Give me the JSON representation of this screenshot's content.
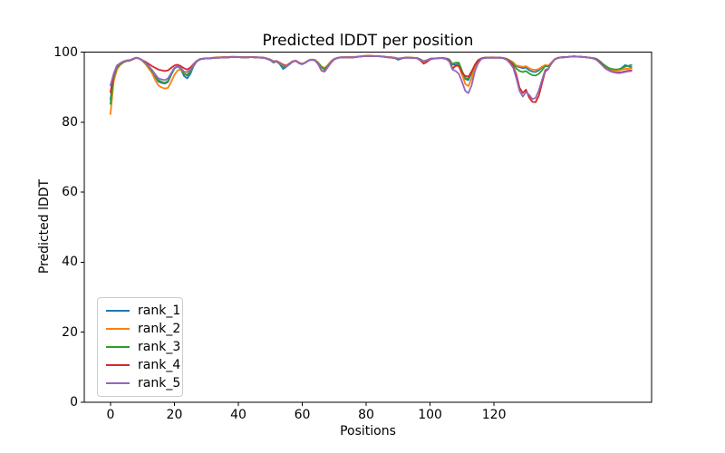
{
  "chart_data": {
    "type": "line",
    "title": "Predicted lDDT per position",
    "xlabel": "Positions",
    "ylabel": "Predicted lDDT",
    "x_start": 0,
    "x_step": 1,
    "n_points": 164,
    "xlim": [
      -8.2,
      169.3
    ],
    "ylim": [
      0,
      100
    ],
    "xticks": [
      0,
      20,
      40,
      60,
      80,
      100,
      120
    ],
    "yticks": [
      0,
      20,
      40,
      60,
      80,
      100
    ],
    "grid": false,
    "legend_position": "lower left",
    "legend_border_color": "#cccccc",
    "axis_color": "#000000",
    "series": [
      {
        "name": "rank_1",
        "color": "#1f77b4",
        "values": [
          86.5,
          93.0,
          95.8,
          96.6,
          97.2,
          97.5,
          97.6,
          98.0,
          98.4,
          98.2,
          97.6,
          96.8,
          95.7,
          94.4,
          92.9,
          91.6,
          91.2,
          91.0,
          91.5,
          93.5,
          95.3,
          95.9,
          95.2,
          93.2,
          92.5,
          93.8,
          96.0,
          97.3,
          97.9,
          98.1,
          98.2,
          98.2,
          98.3,
          98.4,
          98.4,
          98.5,
          98.5,
          98.5,
          98.6,
          98.6,
          98.6,
          98.5,
          98.5,
          98.5,
          98.6,
          98.5,
          98.5,
          98.4,
          98.4,
          98.0,
          97.7,
          97.0,
          97.3,
          96.5,
          95.2,
          95.8,
          96.5,
          97.2,
          97.5,
          96.8,
          96.5,
          97.0,
          97.6,
          97.8,
          97.7,
          96.8,
          95.6,
          95.0,
          96.0,
          97.2,
          98.0,
          98.3,
          98.5,
          98.5,
          98.5,
          98.5,
          98.5,
          98.6,
          98.7,
          98.8,
          98.9,
          98.9,
          98.9,
          98.8,
          98.8,
          98.7,
          98.6,
          98.5,
          98.5,
          98.3,
          97.8,
          98.2,
          98.4,
          98.4,
          98.4,
          98.3,
          98.3,
          97.8,
          97.3,
          97.6,
          98.1,
          98.2,
          98.2,
          98.3,
          98.3,
          98.2,
          97.8,
          96.4,
          96.4,
          96.6,
          94.3,
          92.3,
          92.0,
          94.0,
          96.3,
          97.6,
          98.2,
          98.4,
          98.4,
          98.4,
          98.4,
          98.4,
          98.4,
          98.3,
          98.0,
          97.5,
          97.0,
          96.0,
          95.7,
          95.4,
          95.6,
          94.8,
          94.4,
          94.3,
          94.8,
          95.6,
          96.2,
          96.0,
          97.0,
          98.0,
          98.4,
          98.5,
          98.6,
          98.6,
          98.7,
          98.8,
          98.7,
          98.7,
          98.6,
          98.5,
          98.4,
          98.3,
          98.0,
          97.4,
          96.6,
          95.9,
          95.3,
          95.0,
          94.9,
          95.0,
          95.5,
          96.3,
          96.0,
          95.7
        ]
      },
      {
        "name": "rank_2",
        "color": "#ff7f0e",
        "values": [
          82.3,
          91.5,
          95.0,
          96.3,
          97.0,
          97.4,
          97.5,
          97.9,
          98.3,
          98.1,
          97.5,
          96.5,
          95.3,
          94.0,
          92.0,
          90.5,
          89.9,
          89.6,
          89.8,
          91.5,
          93.5,
          94.8,
          95.0,
          94.0,
          93.6,
          94.4,
          96.2,
          97.4,
          98.0,
          98.2,
          98.3,
          98.3,
          98.4,
          98.5,
          98.5,
          98.6,
          98.6,
          98.6,
          98.7,
          98.7,
          98.6,
          98.6,
          98.6,
          98.6,
          98.6,
          98.6,
          98.5,
          98.5,
          98.4,
          98.2,
          97.9,
          97.4,
          97.5,
          97.0,
          96.5,
          96.2,
          96.8,
          97.4,
          97.6,
          97.0,
          96.7,
          97.1,
          97.7,
          97.9,
          97.8,
          97.0,
          95.9,
          95.5,
          96.3,
          97.4,
          98.1,
          98.4,
          98.5,
          98.5,
          98.6,
          98.6,
          98.6,
          98.7,
          98.8,
          98.9,
          99.0,
          99.0,
          98.9,
          98.9,
          98.8,
          98.8,
          98.7,
          98.6,
          98.5,
          98.4,
          98.2,
          98.3,
          98.4,
          98.5,
          98.4,
          98.4,
          98.3,
          97.9,
          97.4,
          97.7,
          98.1,
          98.2,
          98.3,
          98.3,
          98.3,
          98.2,
          97.7,
          95.4,
          96.0,
          96.2,
          93.5,
          90.9,
          90.3,
          92.5,
          95.8,
          97.4,
          98.1,
          98.4,
          98.4,
          98.5,
          98.5,
          98.4,
          98.4,
          98.3,
          98.1,
          97.6,
          97.1,
          96.2,
          96.0,
          95.8,
          96.0,
          95.4,
          95.0,
          94.9,
          95.2,
          95.8,
          96.3,
          96.1,
          97.1,
          98.0,
          98.4,
          98.5,
          98.6,
          98.6,
          98.7,
          98.8,
          98.7,
          98.7,
          98.6,
          98.5,
          98.4,
          98.3,
          98.0,
          97.4,
          96.6,
          95.9,
          95.2,
          94.9,
          94.7,
          94.8,
          95.0,
          95.2,
          95.3,
          95.4
        ]
      },
      {
        "name": "rank_3",
        "color": "#2ca02c",
        "values": [
          85.2,
          92.8,
          95.6,
          96.5,
          97.1,
          97.5,
          97.6,
          98.0,
          98.4,
          98.2,
          97.6,
          96.8,
          95.8,
          94.6,
          93.2,
          92.0,
          91.5,
          91.2,
          91.8,
          93.6,
          95.4,
          96.0,
          95.3,
          93.8,
          93.3,
          94.5,
          96.3,
          97.4,
          97.9,
          98.1,
          98.2,
          98.2,
          98.3,
          98.4,
          98.4,
          98.5,
          98.5,
          98.5,
          98.6,
          98.6,
          98.6,
          98.5,
          98.5,
          98.5,
          98.6,
          98.5,
          98.5,
          98.4,
          98.4,
          98.1,
          97.8,
          97.1,
          97.3,
          96.7,
          95.6,
          95.9,
          96.6,
          97.3,
          97.5,
          96.9,
          96.6,
          97.0,
          97.6,
          97.8,
          97.7,
          96.9,
          95.7,
          95.1,
          96.1,
          97.2,
          98.0,
          98.3,
          98.5,
          98.5,
          98.5,
          98.5,
          98.5,
          98.6,
          98.7,
          98.8,
          98.9,
          98.9,
          98.9,
          98.8,
          98.8,
          98.7,
          98.6,
          98.5,
          98.5,
          98.3,
          97.9,
          98.2,
          98.4,
          98.4,
          98.4,
          98.3,
          98.3,
          97.9,
          97.4,
          97.7,
          98.1,
          98.2,
          98.2,
          98.3,
          98.3,
          98.2,
          97.9,
          96.6,
          97.0,
          97.0,
          94.6,
          92.6,
          92.4,
          94.2,
          96.4,
          97.7,
          98.2,
          98.4,
          98.4,
          98.4,
          98.4,
          98.4,
          98.4,
          98.3,
          98.0,
          97.4,
          96.6,
          95.3,
          94.6,
          94.3,
          94.6,
          93.9,
          93.4,
          93.3,
          93.8,
          94.8,
          96.0,
          95.9,
          96.9,
          97.9,
          98.3,
          98.5,
          98.6,
          98.6,
          98.7,
          98.8,
          98.7,
          98.7,
          98.6,
          98.5,
          98.4,
          98.3,
          98.1,
          97.5,
          96.7,
          96.0,
          95.4,
          95.2,
          95.0,
          95.1,
          95.4,
          95.8,
          96.1,
          96.3
        ]
      },
      {
        "name": "rank_4",
        "color": "#d62728",
        "values": [
          88.5,
          93.5,
          96.0,
          96.8,
          97.3,
          97.6,
          97.7,
          98.0,
          98.4,
          98.2,
          97.7,
          97.2,
          96.6,
          96.0,
          95.5,
          95.0,
          94.8,
          94.6,
          94.8,
          95.5,
          96.2,
          96.4,
          96.0,
          95.4,
          95.0,
          95.6,
          96.6,
          97.5,
          98.0,
          98.1,
          98.2,
          98.2,
          98.3,
          98.4,
          98.4,
          98.5,
          98.5,
          98.5,
          98.6,
          98.6,
          98.6,
          98.5,
          98.5,
          98.5,
          98.6,
          98.5,
          98.5,
          98.4,
          98.4,
          98.1,
          97.8,
          97.3,
          97.4,
          96.9,
          96.3,
          96.1,
          96.7,
          97.3,
          97.5,
          96.9,
          96.6,
          97.0,
          97.6,
          97.8,
          97.6,
          96.5,
          94.7,
          94.4,
          95.7,
          97.0,
          97.9,
          98.3,
          98.5,
          98.5,
          98.5,
          98.5,
          98.5,
          98.6,
          98.7,
          98.8,
          98.9,
          98.9,
          98.9,
          98.8,
          98.8,
          98.7,
          98.6,
          98.5,
          98.4,
          98.3,
          98.1,
          98.2,
          98.4,
          98.4,
          98.4,
          98.3,
          98.2,
          97.6,
          96.7,
          97.2,
          97.9,
          98.1,
          98.2,
          98.3,
          98.3,
          98.1,
          97.6,
          95.2,
          96.2,
          96.0,
          94.0,
          93.2,
          93.0,
          94.5,
          96.3,
          97.6,
          98.2,
          98.4,
          98.4,
          98.4,
          98.4,
          98.4,
          98.4,
          98.3,
          97.9,
          97.2,
          96.0,
          93.5,
          89.8,
          88.3,
          89.3,
          87.0,
          85.8,
          85.7,
          87.5,
          91.0,
          94.5,
          95.2,
          96.8,
          97.9,
          98.3,
          98.5,
          98.5,
          98.6,
          98.7,
          98.7,
          98.7,
          98.6,
          98.6,
          98.5,
          98.4,
          98.2,
          97.9,
          97.2,
          96.2,
          95.3,
          94.8,
          94.4,
          94.2,
          94.2,
          94.3,
          94.5,
          94.7,
          94.8
        ]
      },
      {
        "name": "rank_5",
        "color": "#9467bd",
        "values": [
          90.5,
          93.8,
          96.2,
          96.8,
          97.3,
          97.6,
          97.7,
          98.1,
          98.4,
          98.2,
          97.7,
          96.9,
          96.0,
          94.9,
          93.6,
          92.5,
          92.2,
          92.0,
          92.5,
          94.0,
          95.5,
          96.0,
          95.5,
          94.4,
          94.3,
          95.0,
          96.4,
          97.5,
          98.0,
          98.1,
          98.2,
          98.2,
          98.3,
          98.4,
          98.4,
          98.5,
          98.5,
          98.5,
          98.6,
          98.6,
          98.6,
          98.5,
          98.5,
          98.5,
          98.6,
          98.5,
          98.5,
          98.4,
          98.4,
          98.1,
          97.8,
          97.2,
          97.4,
          96.8,
          96.2,
          96.0,
          96.6,
          97.3,
          97.5,
          96.9,
          96.6,
          97.0,
          97.6,
          97.8,
          97.6,
          96.6,
          94.8,
          94.5,
          95.8,
          97.1,
          98.0,
          98.3,
          98.5,
          98.5,
          98.5,
          98.5,
          98.5,
          98.6,
          98.7,
          98.8,
          98.9,
          98.9,
          98.9,
          98.8,
          98.8,
          98.7,
          98.6,
          98.5,
          98.5,
          98.4,
          98.2,
          98.3,
          98.4,
          98.4,
          98.4,
          98.3,
          98.3,
          97.8,
          97.3,
          97.6,
          98.1,
          98.2,
          98.2,
          98.3,
          98.2,
          98.0,
          97.3,
          95.0,
          94.6,
          93.8,
          91.5,
          88.9,
          88.3,
          90.5,
          94.5,
          96.8,
          98.0,
          98.3,
          98.4,
          98.4,
          98.4,
          98.4,
          98.4,
          98.2,
          97.8,
          96.8,
          95.5,
          92.5,
          88.9,
          87.3,
          88.6,
          87.8,
          86.6,
          86.9,
          89.0,
          92.0,
          94.9,
          95.3,
          96.9,
          97.9,
          98.3,
          98.5,
          98.5,
          98.6,
          98.7,
          98.7,
          98.7,
          98.6,
          98.6,
          98.5,
          98.4,
          98.2,
          97.8,
          97.0,
          96.1,
          95.2,
          94.7,
          94.3,
          94.1,
          94.0,
          94.1,
          94.3,
          94.5,
          94.6
        ]
      }
    ]
  }
}
